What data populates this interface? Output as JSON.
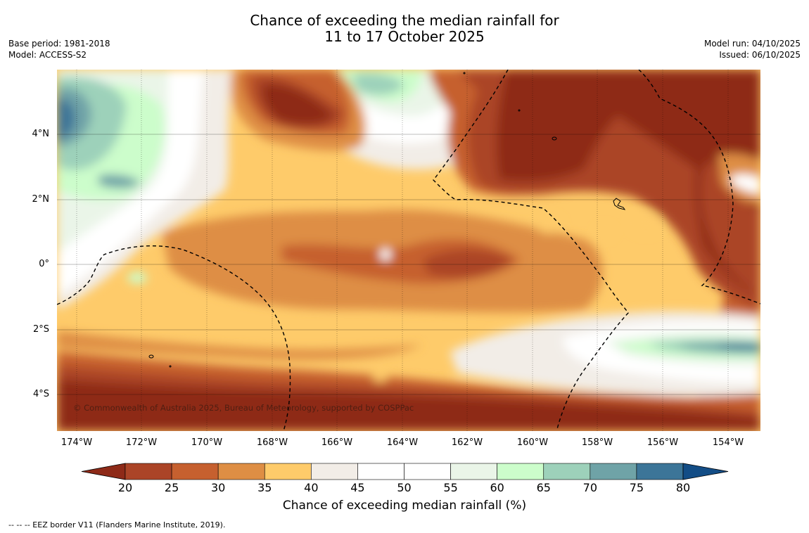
{
  "title": {
    "line1": "Chance of exceeding the median rainfall for",
    "line2": "11 to 17 October 2025"
  },
  "meta": {
    "base_period": "Base period: 1981-2018",
    "model": "Model: ACCESS-S2",
    "model_run": "Model run: 04/10/2025",
    "issued": "Issued: 06/10/2025"
  },
  "map": {
    "lat_labels": [
      "4°N",
      "2°N",
      "0°",
      "2°S",
      "4°S"
    ],
    "lon_labels": [
      "174°W",
      "172°W",
      "170°W",
      "168°W",
      "166°W",
      "164°W",
      "162°W",
      "160°W",
      "158°W",
      "156°W",
      "154°W"
    ],
    "copyright": "© Commonwealth of Australia 2025, Bureau of Meteorology, supported by COSPPac"
  },
  "colorbar": {
    "ticks": [
      "20",
      "25",
      "30",
      "35",
      "40",
      "45",
      "50",
      "55",
      "60",
      "65",
      "70",
      "75",
      "80"
    ],
    "colors": [
      "#8e2a18",
      "#ab4427",
      "#c6602f",
      "#de8e44",
      "#fecb6a",
      "#f2ede7",
      "#ffffff",
      "#ffffff",
      "#eaf5e8",
      "#ccfdcb",
      "#9dd1ba",
      "#6fa3a7",
      "#3c7598",
      "#134d86"
    ],
    "label": "Chance of exceeding median rainfall (%)"
  },
  "footer": "--  --  -- EEZ border V11 (Flanders Marine Institute, 2019)."
}
